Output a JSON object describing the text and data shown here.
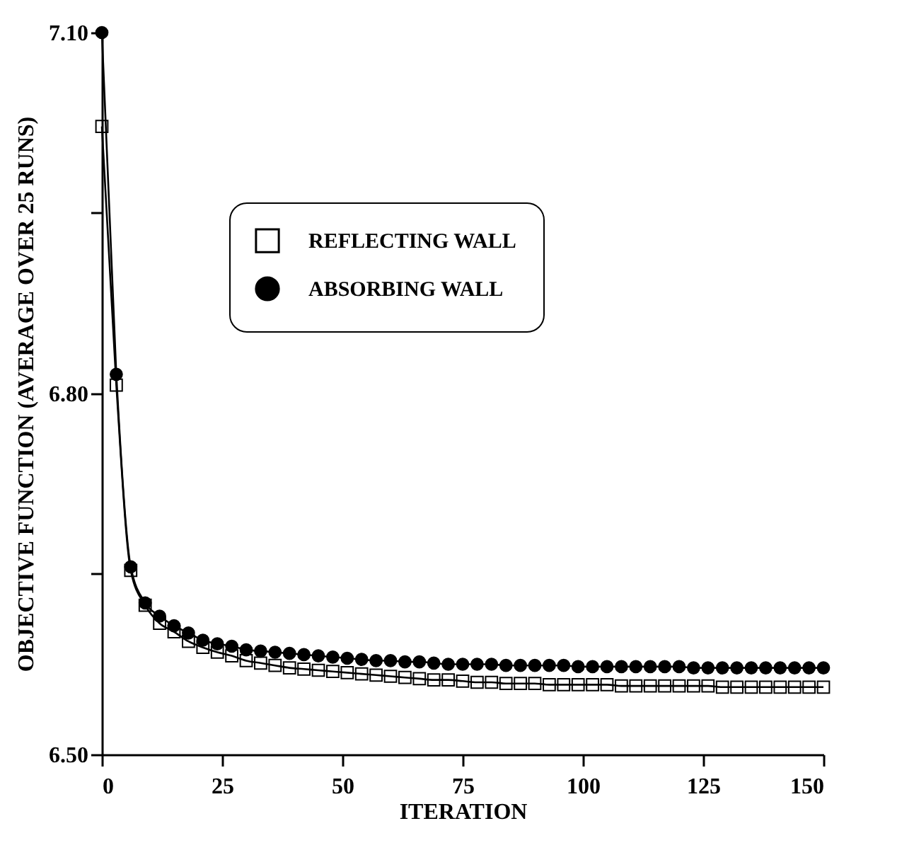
{
  "chart_data": {
    "type": "line",
    "xlabel": "ITERATION",
    "ylabel": "OBJECTIVE FUNCTION (AVERAGE OVER 25 RUNS)",
    "x": [
      0,
      3,
      6,
      9,
      12,
      15,
      18,
      21,
      24,
      27,
      30,
      33,
      36,
      39,
      42,
      45,
      48,
      51,
      54,
      57,
      60,
      63,
      66,
      69,
      72,
      75,
      78,
      81,
      84,
      87,
      90,
      93,
      96,
      99,
      102,
      105,
      108,
      111,
      114,
      117,
      120,
      123,
      126,
      129,
      132,
      135,
      138,
      141,
      144,
      147,
      150
    ],
    "series": [
      {
        "name": "REFLECTING WALL",
        "color": "#000000",
        "marker": "square",
        "values": [
          7.022,
          6.807,
          6.653,
          6.624,
          6.609,
          6.602,
          6.594,
          6.589,
          6.585,
          6.582,
          6.578,
          6.576,
          6.574,
          6.572,
          6.571,
          6.57,
          6.569,
          6.568,
          6.567,
          6.566,
          6.565,
          6.564,
          6.563,
          6.562,
          6.562,
          6.561,
          6.56,
          6.56,
          6.559,
          6.559,
          6.559,
          6.558,
          6.558,
          6.558,
          6.558,
          6.558,
          6.557,
          6.557,
          6.557,
          6.557,
          6.557,
          6.557,
          6.557,
          6.556,
          6.556,
          6.556,
          6.556,
          6.556,
          6.556,
          6.556,
          6.556
        ]
      },
      {
        "name": "ABSORBING WALL",
        "color": "#000000",
        "marker": "circle",
        "values": [
          7.1,
          6.816,
          6.656,
          6.626,
          6.615,
          6.607,
          6.601,
          6.595,
          6.592,
          6.59,
          6.587,
          6.586,
          6.585,
          6.584,
          6.583,
          6.582,
          6.581,
          6.58,
          6.579,
          6.578,
          6.578,
          6.577,
          6.577,
          6.576,
          6.575,
          6.575,
          6.575,
          6.575,
          6.574,
          6.574,
          6.574,
          6.574,
          6.574,
          6.573,
          6.573,
          6.573,
          6.573,
          6.573,
          6.573,
          6.573,
          6.573,
          6.572,
          6.572,
          6.572,
          6.572,
          6.572,
          6.572,
          6.572,
          6.572,
          6.572,
          6.572
        ]
      }
    ],
    "xlim": [
      0,
      150
    ],
    "xticks": [
      0,
      25,
      50,
      75,
      100,
      125,
      150
    ],
    "ylim": [
      6.5,
      7.1
    ],
    "yticks": [
      {
        "value": 6.5,
        "label": "6.50"
      },
      {
        "value": 6.65,
        "label": null
      },
      {
        "value": 6.8,
        "label": "6.80"
      },
      {
        "value": 6.95,
        "label": null
      },
      {
        "value": 7.1,
        "label": "7.10"
      }
    ],
    "grid": false,
    "legend": "top",
    "line_style": "solid"
  }
}
